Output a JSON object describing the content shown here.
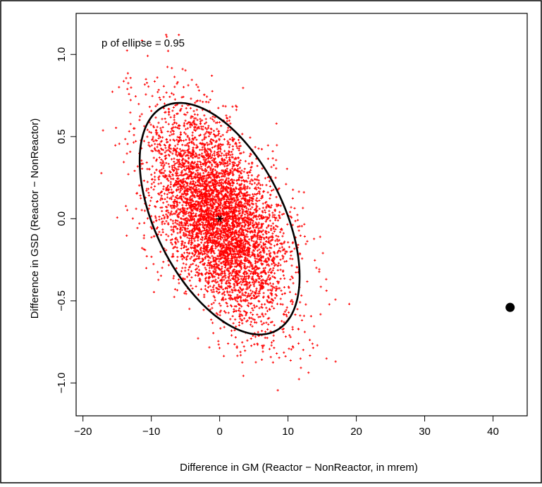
{
  "chart_data": {
    "type": "scatter",
    "title": "",
    "annotation": "p of ellipse = 0.95",
    "xlabel": "Difference in GM (Reactor − NonReactor, in mrem)",
    "ylabel": "Difference in GSD (Reactor − NonReactor)",
    "xlim": [
      -21,
      45
    ],
    "ylim": [
      -1.2,
      1.25
    ],
    "x_ticks": [
      -20,
      -10,
      0,
      10,
      20,
      30,
      40
    ],
    "x_tick_labels": [
      "−20",
      "−10",
      "0",
      "10",
      "20",
      "30",
      "40"
    ],
    "y_ticks": [
      -1.0,
      -0.5,
      0.0,
      0.5,
      1.0
    ],
    "y_tick_labels": [
      "−1.0",
      "−0.5",
      "0.0",
      "0.5",
      "1.0"
    ],
    "grid": false,
    "point_cloud": {
      "color": "#ff0000",
      "center": [
        0,
        0
      ],
      "sd_x": 5.0,
      "sd_y": 0.31,
      "correlation": -0.5,
      "count": 5000
    },
    "ellipse": {
      "p": 0.95,
      "center": [
        0,
        0
      ],
      "x_range": [
        -11.8,
        11.6
      ],
      "y_range": [
        -0.7,
        0.71
      ],
      "color": "#000000"
    },
    "center_marker": {
      "x": 0,
      "y": 0,
      "symbol": "*",
      "color": "#000000"
    },
    "observed_point": {
      "x": 42.5,
      "y": -0.54,
      "color": "#000000"
    }
  }
}
